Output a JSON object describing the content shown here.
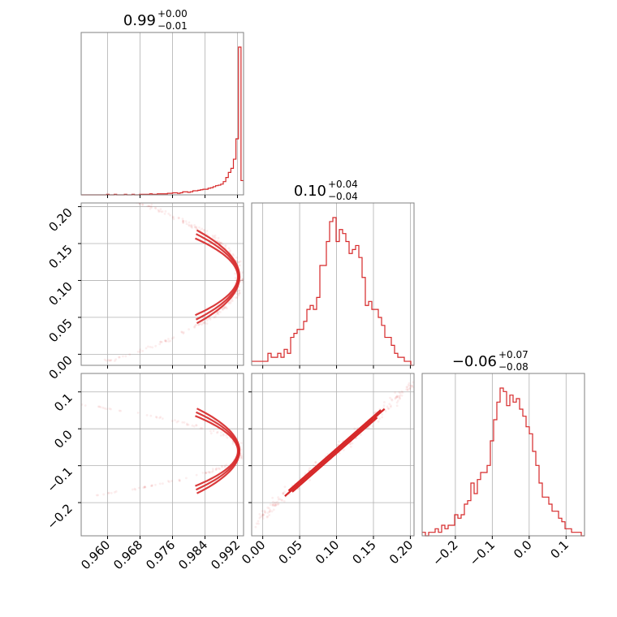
{
  "colors": {
    "accent": "#d62728",
    "grid": "#b0b0b0",
    "frame": "#808080"
  },
  "chart_data": {
    "type": "corner",
    "parameters": [
      "p0",
      "p1",
      "p2"
    ],
    "titles": [
      {
        "median": "0.99",
        "plus": "+0.00",
        "minus": "−0.01"
      },
      {
        "median": "0.10",
        "plus": "+0.04",
        "minus": "−0.04"
      },
      {
        "median": "−0.06",
        "plus": "+0.07",
        "minus": "−0.08"
      }
    ],
    "ranges": [
      [
        0.9535,
        0.9935
      ],
      [
        -0.015,
        0.205
      ],
      [
        -0.29,
        0.15
      ]
    ],
    "ticks": [
      {
        "values": [
          0.96,
          0.968,
          0.976,
          0.984,
          0.992
        ],
        "labels": [
          "0.960",
          "0.968",
          "0.976",
          "0.984",
          "0.992"
        ]
      },
      {
        "values": [
          0.0,
          0.05,
          0.1,
          0.15,
          0.2
        ],
        "labels": [
          "0.00",
          "0.05",
          "0.10",
          "0.15",
          "0.20"
        ]
      },
      {
        "values": [
          -0.2,
          -0.1,
          0.0,
          0.1
        ],
        "labels": [
          "−0.2",
          "−0.1",
          "0.0",
          "0.1"
        ]
      }
    ],
    "grid": true,
    "histograms": [
      {
        "param": 0,
        "bins": [
          0.9535,
          0.9935
        ],
        "counts": [
          0,
          0,
          0,
          0,
          0,
          0,
          0,
          0,
          0,
          0,
          1,
          0,
          0,
          1,
          0,
          0,
          0,
          1,
          0,
          0,
          1,
          0,
          0,
          1,
          1,
          1,
          1,
          2,
          1,
          1,
          2,
          2,
          2,
          2,
          3,
          3,
          4,
          4,
          3,
          4,
          6,
          6,
          5,
          6,
          8,
          8,
          9,
          10,
          11,
          11,
          13,
          14,
          16,
          18,
          19,
          21,
          26,
          34,
          44,
          52,
          70,
          110,
          290,
          28
        ]
      },
      {
        "param": 1,
        "bins": [
          -0.015,
          0.205
        ],
        "counts": [
          1,
          1,
          1,
          1,
          1,
          3,
          2,
          2,
          3,
          2,
          4,
          3,
          7,
          8,
          9,
          9,
          11,
          14,
          15,
          14,
          17,
          25,
          25,
          31,
          36,
          37,
          31,
          34,
          33,
          31,
          28,
          29,
          30,
          27,
          22,
          15,
          16,
          14,
          14,
          12,
          10,
          7,
          7,
          5,
          3,
          2,
          2,
          1,
          1,
          0
        ]
      },
      {
        "param": 2,
        "bins": [
          -0.29,
          0.15
        ],
        "counts": [
          1,
          0,
          1,
          1,
          2,
          1,
          3,
          2,
          3,
          3,
          6,
          5,
          6,
          9,
          10,
          15,
          12,
          16,
          18,
          18,
          20,
          27,
          33,
          38,
          42,
          41,
          37,
          40,
          38,
          39,
          36,
          34,
          31,
          29,
          24,
          20,
          15,
          11,
          11,
          9,
          7,
          7,
          5,
          4,
          2,
          2,
          1,
          1,
          1,
          0
        ]
      }
    ],
    "scatter_pairs": [
      {
        "x_param": 0,
        "y_param": 1,
        "relation": "parabola",
        "form": "x = 0.993 - 2.5*(y - 0.105)^2"
      },
      {
        "x_param": 0,
        "y_param": 2,
        "relation": "parabola",
        "form": "x = 0.993 - 2.5*(y + 0.06)^2"
      },
      {
        "x_param": 1,
        "y_param": 2,
        "relation": "linear",
        "form": "y = 1.75*x - 0.235"
      }
    ]
  }
}
